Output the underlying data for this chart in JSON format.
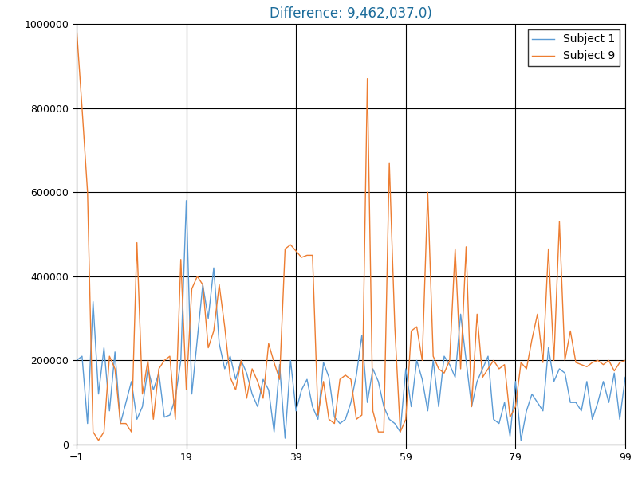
{
  "title": "Difference: 9,462,037.0)",
  "title_color": "#1a6b9a",
  "legend_labels": [
    "Subject 1",
    "Subject 9"
  ],
  "line_colors": [
    "#5b9bd5",
    "#ed7d31"
  ],
  "xlim": [
    -1,
    99
  ],
  "ylim": [
    0,
    1000000
  ],
  "xticks": [
    -1,
    19,
    39,
    59,
    79,
    99
  ],
  "yticks": [
    0,
    200000,
    400000,
    600000,
    800000,
    1000000
  ],
  "signal1": [
    200000,
    210000,
    50000,
    340000,
    120000,
    230000,
    80000,
    220000,
    50000,
    100000,
    150000,
    60000,
    90000,
    180000,
    130000,
    170000,
    65000,
    70000,
    110000,
    200000,
    580000,
    120000,
    250000,
    380000,
    300000,
    420000,
    240000,
    180000,
    210000,
    155000,
    200000,
    170000,
    120000,
    90000,
    155000,
    130000,
    30000,
    190000,
    15000,
    200000,
    80000,
    130000,
    155000,
    90000,
    60000,
    195000,
    160000,
    65000,
    50000,
    60000,
    100000,
    165000,
    260000,
    100000,
    180000,
    150000,
    90000,
    60000,
    50000,
    30000,
    180000,
    90000,
    200000,
    155000,
    80000,
    200000,
    90000,
    210000,
    190000,
    160000,
    310000,
    200000,
    90000,
    150000,
    180000,
    210000,
    60000,
    50000,
    100000,
    20000,
    150000,
    10000,
    80000,
    120000,
    100000,
    80000,
    230000,
    150000,
    180000,
    170000,
    100000,
    100000,
    80000,
    150000,
    60000,
    100000,
    150000,
    100000,
    170000,
    60000,
    160000
  ],
  "signal9": [
    990000,
    800000,
    600000,
    30000,
    10000,
    30000,
    210000,
    180000,
    50000,
    50000,
    30000,
    480000,
    120000,
    200000,
    60000,
    180000,
    200000,
    210000,
    60000,
    440000,
    130000,
    370000,
    400000,
    380000,
    230000,
    270000,
    380000,
    280000,
    160000,
    130000,
    200000,
    110000,
    180000,
    150000,
    110000,
    240000,
    195000,
    155000,
    465000,
    475000,
    460000,
    445000,
    450000,
    450000,
    70000,
    150000,
    60000,
    50000,
    155000,
    165000,
    155000,
    60000,
    70000,
    870000,
    80000,
    30000,
    30000,
    670000,
    280000,
    30000,
    60000,
    270000,
    280000,
    200000,
    600000,
    210000,
    180000,
    170000,
    200000,
    465000,
    180000,
    470000,
    90000,
    310000,
    160000,
    180000,
    200000,
    180000,
    190000,
    65000,
    90000,
    195000,
    180000,
    250000,
    310000,
    195000,
    465000,
    200000,
    530000,
    200000,
    270000,
    195000,
    190000,
    185000,
    195000,
    200000,
    190000,
    200000,
    175000,
    195000,
    200000
  ],
  "figsize": [
    8.0,
    6.0
  ],
  "dpi": 100
}
